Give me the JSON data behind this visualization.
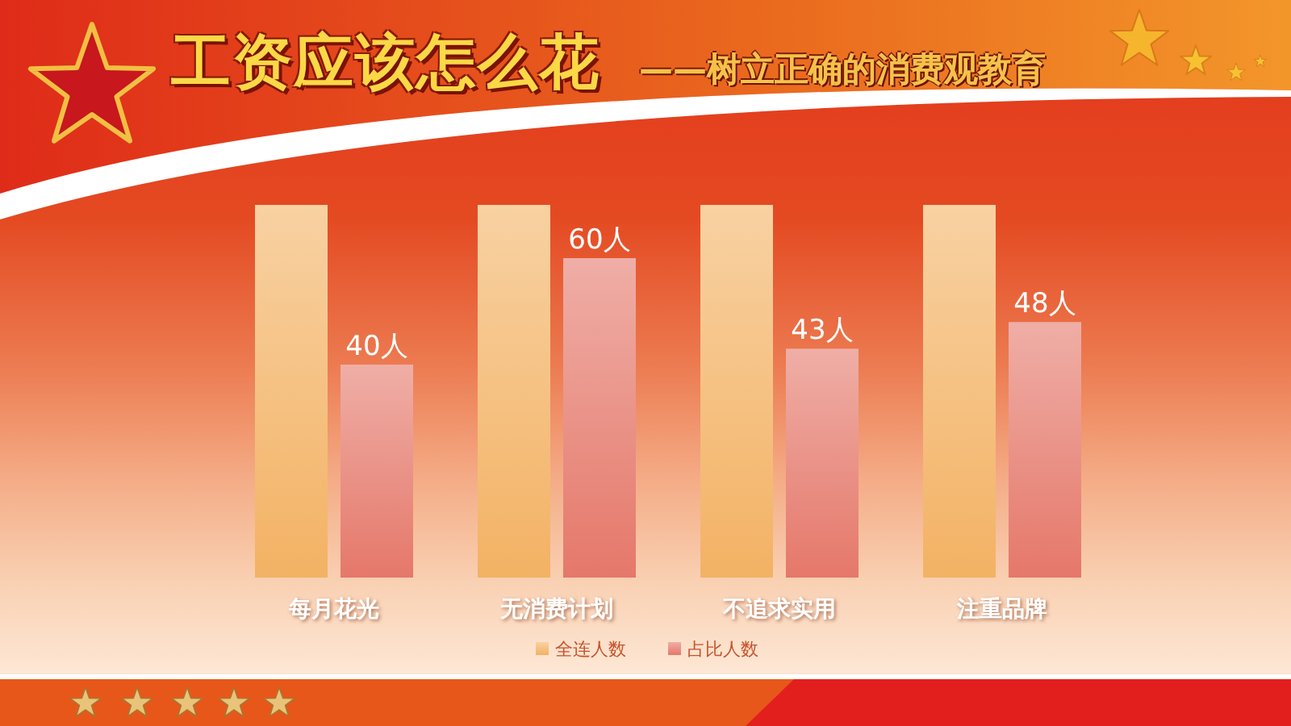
{
  "chart_data": {
    "type": "bar",
    "title": "工资应该怎么花",
    "subtitle": "——树立正确的消费观教育",
    "categories": [
      "每月花光",
      "无消费计划",
      "不追求实用",
      "注重品牌"
    ],
    "series": [
      {
        "name": "全连人数",
        "color": "#f3b264",
        "values": [
          70,
          70,
          70,
          70
        ]
      },
      {
        "name": "占比人数",
        "color": "#e5786a",
        "values": [
          40,
          60,
          43,
          48
        ],
        "value_labels": [
          "40人",
          "60人",
          "43人",
          "48人"
        ]
      }
    ],
    "legend": "bottom"
  }
}
